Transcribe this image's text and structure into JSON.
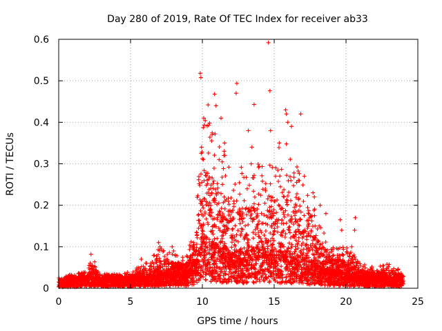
{
  "chart_data": {
    "type": "scatter",
    "title": "Day 280 of 2019, Rate Of TEC Index for receiver ab33",
    "xlabel": "GPS time / hours",
    "ylabel": "ROTI / TECUs",
    "xlim": [
      0,
      25
    ],
    "ylim": [
      0,
      0.6
    ],
    "x_ticks": [
      0,
      5,
      10,
      15,
      20,
      25
    ],
    "x_tick_labels": [
      "0",
      "5",
      "10",
      "15",
      "20",
      "25"
    ],
    "y_ticks": [
      0,
      0.1,
      0.2,
      0.3,
      0.4,
      0.5,
      0.6
    ],
    "y_tick_labels": [
      "0",
      "0.1",
      "0.2",
      "0.3",
      "0.4",
      "0.5",
      "0.6"
    ],
    "grid": true,
    "marker": "plus",
    "color": "#ff0000",
    "x_range_of_data": [
      0,
      24
    ],
    "profile": [
      {
        "x": 0.0,
        "base": 0.012,
        "peak": 0.025
      },
      {
        "x": 1.0,
        "base": 0.015,
        "peak": 0.035
      },
      {
        "x": 2.0,
        "base": 0.018,
        "peak": 0.04
      },
      {
        "x": 2.3,
        "base": 0.02,
        "peak": 0.08
      },
      {
        "x": 3.0,
        "base": 0.016,
        "peak": 0.035
      },
      {
        "x": 4.0,
        "base": 0.016,
        "peak": 0.035
      },
      {
        "x": 5.0,
        "base": 0.018,
        "peak": 0.04
      },
      {
        "x": 6.0,
        "base": 0.02,
        "peak": 0.06
      },
      {
        "x": 7.0,
        "base": 0.025,
        "peak": 0.1
      },
      {
        "x": 8.0,
        "base": 0.025,
        "peak": 0.09
      },
      {
        "x": 9.0,
        "base": 0.03,
        "peak": 0.08
      },
      {
        "x": 9.6,
        "base": 0.05,
        "peak": 0.2
      },
      {
        "x": 10.0,
        "base": 0.09,
        "peak": 0.42
      },
      {
        "x": 11.0,
        "base": 0.07,
        "peak": 0.38
      },
      {
        "x": 12.0,
        "base": 0.06,
        "peak": 0.3
      },
      {
        "x": 13.0,
        "base": 0.06,
        "peak": 0.3
      },
      {
        "x": 14.0,
        "base": 0.07,
        "peak": 0.3
      },
      {
        "x": 15.0,
        "base": 0.06,
        "peak": 0.35
      },
      {
        "x": 16.0,
        "base": 0.06,
        "peak": 0.36
      },
      {
        "x": 17.0,
        "base": 0.05,
        "peak": 0.25
      },
      {
        "x": 18.0,
        "base": 0.04,
        "peak": 0.18
      },
      {
        "x": 19.0,
        "base": 0.03,
        "peak": 0.1
      },
      {
        "x": 20.0,
        "base": 0.025,
        "peak": 0.1
      },
      {
        "x": 21.0,
        "base": 0.02,
        "peak": 0.06
      },
      {
        "x": 22.0,
        "base": 0.018,
        "peak": 0.05
      },
      {
        "x": 23.0,
        "base": 0.018,
        "peak": 0.06
      },
      {
        "x": 24.0,
        "base": 0.015,
        "peak": 0.04
      }
    ],
    "outliers": [
      {
        "x": 9.85,
        "y": 0.518
      },
      {
        "x": 9.9,
        "y": 0.508
      },
      {
        "x": 14.6,
        "y": 0.592
      },
      {
        "x": 14.7,
        "y": 0.476
      },
      {
        "x": 12.4,
        "y": 0.494
      },
      {
        "x": 12.35,
        "y": 0.47
      },
      {
        "x": 10.85,
        "y": 0.468
      },
      {
        "x": 10.95,
        "y": 0.44
      },
      {
        "x": 10.4,
        "y": 0.442
      },
      {
        "x": 13.6,
        "y": 0.443
      },
      {
        "x": 15.8,
        "y": 0.43
      },
      {
        "x": 15.85,
        "y": 0.42
      },
      {
        "x": 16.85,
        "y": 0.42
      },
      {
        "x": 10.1,
        "y": 0.41
      },
      {
        "x": 10.2,
        "y": 0.404
      },
      {
        "x": 11.3,
        "y": 0.41
      },
      {
        "x": 14.75,
        "y": 0.38
      },
      {
        "x": 16.2,
        "y": 0.39
      },
      {
        "x": 13.2,
        "y": 0.38
      },
      {
        "x": 15.95,
        "y": 0.4
      },
      {
        "x": 11.55,
        "y": 0.35
      },
      {
        "x": 13.45,
        "y": 0.34
      },
      {
        "x": 15.35,
        "y": 0.35
      },
      {
        "x": 11.5,
        "y": 0.32
      },
      {
        "x": 17.1,
        "y": 0.27
      },
      {
        "x": 17.7,
        "y": 0.23
      },
      {
        "x": 17.8,
        "y": 0.22
      },
      {
        "x": 18.6,
        "y": 0.18
      },
      {
        "x": 19.6,
        "y": 0.165
      },
      {
        "x": 20.65,
        "y": 0.17
      },
      {
        "x": 20.6,
        "y": 0.14
      },
      {
        "x": 19.7,
        "y": 0.14
      },
      {
        "x": 20.4,
        "y": 0.1
      },
      {
        "x": 20.55,
        "y": 0.08
      },
      {
        "x": 2.25,
        "y": 0.082
      },
      {
        "x": 6.95,
        "y": 0.11
      },
      {
        "x": 7.05,
        "y": 0.1
      },
      {
        "x": 7.9,
        "y": 0.1
      },
      {
        "x": 8.0,
        "y": 0.09
      },
      {
        "x": 5.75,
        "y": 0.07
      },
      {
        "x": 18.2,
        "y": 0.2
      },
      {
        "x": 9.35,
        "y": 0.08
      }
    ]
  }
}
